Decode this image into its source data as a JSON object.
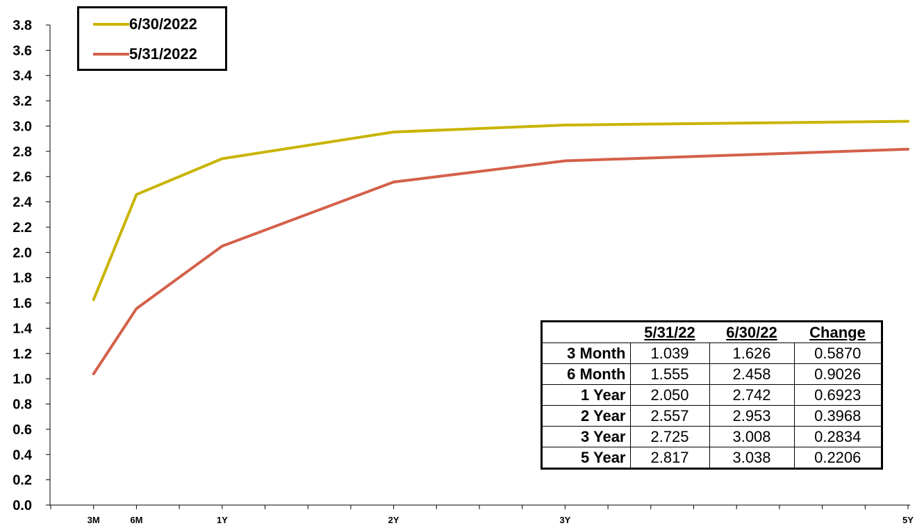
{
  "chart_data": {
    "type": "line",
    "title": "",
    "xlabel": "",
    "ylabel": "",
    "ylim": [
      0.0,
      3.8
    ],
    "yticks": [
      "0.0",
      "0.2",
      "0.4",
      "0.6",
      "0.8",
      "1.0",
      "1.2",
      "1.4",
      "1.6",
      "1.8",
      "2.0",
      "2.2",
      "2.4",
      "2.6",
      "2.8",
      "3.0",
      "3.2",
      "3.4",
      "3.6",
      "3.8"
    ],
    "xlim": [
      0,
      60
    ],
    "xtick_labels": [
      {
        "value": 3,
        "label": "3M"
      },
      {
        "value": 6,
        "label": "6M"
      },
      {
        "value": 12,
        "label": "1Y"
      },
      {
        "value": 24,
        "label": "2Y"
      },
      {
        "value": 36,
        "label": "3Y"
      },
      {
        "value": 60,
        "label": "5Y"
      }
    ],
    "x": [
      3,
      6,
      12,
      24,
      36,
      60
    ],
    "series": [
      {
        "name": "6/30/2022",
        "color": "#c8b400",
        "values": [
          1.626,
          2.458,
          2.742,
          2.953,
          3.008,
          3.038
        ]
      },
      {
        "name": "5/31/2022",
        "color": "#d4604a",
        "values": [
          1.039,
          1.555,
          2.05,
          2.557,
          2.725,
          2.817
        ]
      }
    ],
    "legend_position": "top-left",
    "grid": false
  },
  "table": {
    "headers": [
      "",
      "5/31/22",
      "6/30/22",
      "Change"
    ],
    "rows": [
      [
        "3 Month",
        "1.039",
        "1.626",
        "0.5870"
      ],
      [
        "6 Month",
        "1.555",
        "2.458",
        "0.9026"
      ],
      [
        "1 Year",
        "2.050",
        "2.742",
        "0.6923"
      ],
      [
        "2 Year",
        "2.557",
        "2.953",
        "0.3968"
      ],
      [
        "3 Year",
        "2.725",
        "3.008",
        "0.2834"
      ],
      [
        "5 Year",
        "2.817",
        "3.038",
        "0.2206"
      ]
    ]
  }
}
